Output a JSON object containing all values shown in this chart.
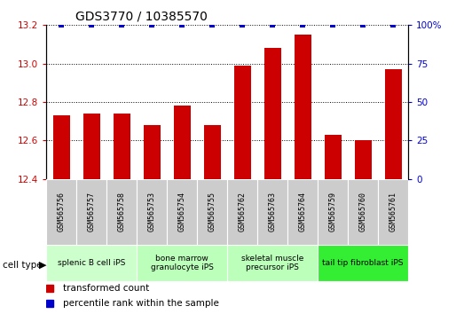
{
  "title": "GDS3770 / 10385570",
  "samples": [
    "GSM565756",
    "GSM565757",
    "GSM565758",
    "GSM565753",
    "GSM565754",
    "GSM565755",
    "GSM565762",
    "GSM565763",
    "GSM565764",
    "GSM565759",
    "GSM565760",
    "GSM565761"
  ],
  "transformed_counts": [
    12.73,
    12.74,
    12.74,
    12.68,
    12.78,
    12.68,
    12.99,
    13.08,
    13.15,
    12.63,
    12.6,
    12.97
  ],
  "percentile_ranks": [
    100,
    100,
    100,
    100,
    100,
    100,
    100,
    100,
    100,
    100,
    100,
    100
  ],
  "ylim_left": [
    12.4,
    13.2
  ],
  "yticks_left": [
    12.4,
    12.6,
    12.8,
    13.0,
    13.2
  ],
  "ylim_right": [
    0,
    100
  ],
  "yticks_right": [
    0,
    25,
    50,
    75,
    100
  ],
  "bar_color": "#cc0000",
  "scatter_color": "#0000cc",
  "groups": [
    {
      "label": "splenic B cell iPS",
      "start": 0,
      "end": 3,
      "color": "#ccffcc"
    },
    {
      "label": "bone marrow\ngranulocyte iPS",
      "start": 3,
      "end": 6,
      "color": "#bbffbb"
    },
    {
      "label": "skeletal muscle\nprecursor iPS",
      "start": 6,
      "end": 9,
      "color": "#bbffbb"
    },
    {
      "label": "tail tip fibroblast iPS",
      "start": 9,
      "end": 12,
      "color": "#33ee33"
    }
  ],
  "cell_type_label": "cell type",
  "legend_transformed": "transformed count",
  "legend_percentile": "percentile rank within the sample",
  "left_tick_color": "#cc0000",
  "right_tick_color": "#0000cc",
  "title_fontsize": 10,
  "tick_fontsize": 7.5,
  "bar_width": 0.55,
  "sample_bg_color": "#cccccc",
  "right_axis_label_100": "100%"
}
